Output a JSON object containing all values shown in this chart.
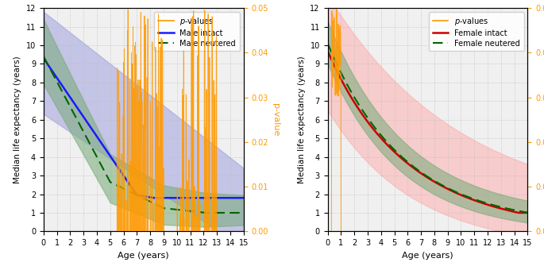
{
  "xlim": [
    0,
    15
  ],
  "ylim_left": [
    0,
    12
  ],
  "ylim_right": [
    0,
    0.05
  ],
  "xlabel": "Age (years)",
  "ylabel": "Median life expectancy (years)",
  "ylabel_right": "p-value",
  "xticks": [
    0,
    1,
    2,
    3,
    4,
    5,
    6,
    7,
    8,
    9,
    10,
    11,
    12,
    13,
    14,
    15
  ],
  "yticks_left": [
    0,
    1,
    2,
    3,
    4,
    5,
    6,
    7,
    8,
    9,
    10,
    11,
    12
  ],
  "yticks_right": [
    0.0,
    0.01,
    0.02,
    0.03,
    0.04,
    0.05
  ],
  "male_intact_color": "#1a1aff",
  "male_intact_ci_color": "#9999dd",
  "male_neutered_color": "#006600",
  "male_neutered_ci_color": "#77aa77",
  "female_intact_color": "#cc0000",
  "female_intact_ci_color": "#ffaaaa",
  "female_neutered_color": "#006600",
  "female_neutered_ci_color": "#77aa77",
  "pvalue_color": "#ff9900",
  "background_color": "#f0f0f0",
  "grid_color": "#bbbbbb"
}
